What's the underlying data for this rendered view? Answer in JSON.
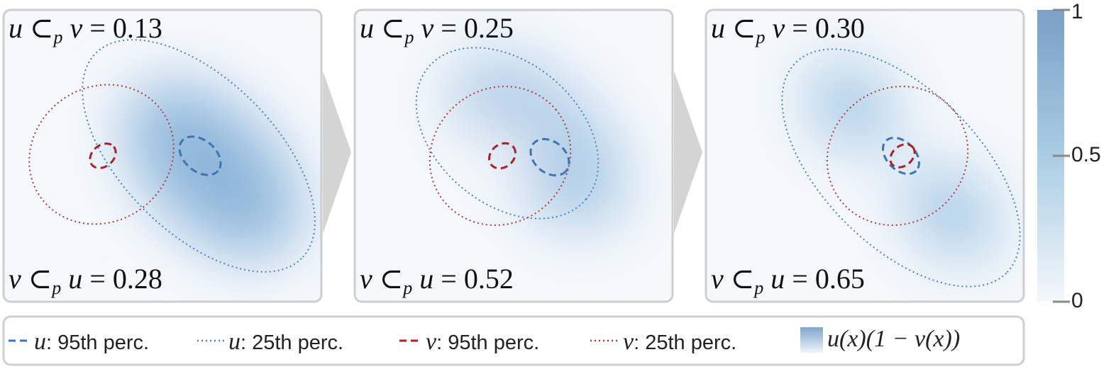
{
  "panels": [
    {
      "top": {
        "lhs": "u",
        "op": "⊂",
        "sub": "p",
        "rhs": "v",
        "eq": "=",
        "value": "0.13"
      },
      "bottom": {
        "lhs": "v",
        "op": "⊂",
        "sub": "p",
        "rhs": "u",
        "eq": "=",
        "value": "0.28"
      }
    },
    {
      "top": {
        "lhs": "u",
        "op": "⊂",
        "sub": "p",
        "rhs": "v",
        "eq": "=",
        "value": "0.25"
      },
      "bottom": {
        "lhs": "v",
        "op": "⊂",
        "sub": "p",
        "rhs": "u",
        "eq": "=",
        "value": "0.52"
      }
    },
    {
      "top": {
        "lhs": "u",
        "op": "⊂",
        "sub": "p",
        "rhs": "v",
        "eq": "=",
        "value": "0.30"
      },
      "bottom": {
        "lhs": "v",
        "op": "⊂",
        "sub": "p",
        "rhs": "u",
        "eq": "=",
        "value": "0.65"
      }
    }
  ],
  "colorbar": {
    "ticks": [
      0,
      0.5,
      1
    ],
    "range": [
      0,
      1
    ]
  },
  "legend": [
    {
      "symbol": "u",
      "text": ": 95th perc."
    },
    {
      "symbol": "u",
      "text": ": 25th perc."
    },
    {
      "symbol": "v",
      "text": ": 95th perc."
    },
    {
      "symbol": "v",
      "text": ": 25th perc."
    },
    {
      "symbol": "u(x)(1 − v(x))",
      "text": ""
    }
  ]
}
